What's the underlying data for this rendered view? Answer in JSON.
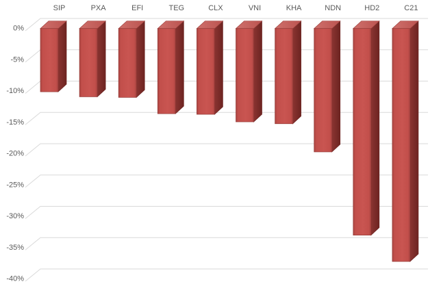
{
  "chart_data": {
    "type": "bar",
    "style": "3d-column-negative",
    "title": "",
    "xlabel": "",
    "ylabel": "",
    "legend": false,
    "grid": true,
    "value_format": "percent",
    "categories": [
      "SIP",
      "PXA",
      "EFI",
      "TEG",
      "CLX",
      "VNI",
      "KHA",
      "NDN",
      "HD2",
      "C21"
    ],
    "values": [
      -10.1,
      -10.9,
      -11.0,
      -13.6,
      -13.7,
      -14.9,
      -15.2,
      -19.7,
      -33.0,
      -37.2
    ],
    "ylim": [
      -40,
      0
    ],
    "y_ticks": [
      {
        "value": 0,
        "label": "0%"
      },
      {
        "value": -5,
        "label": "-5%"
      },
      {
        "value": -10,
        "label": "-10%"
      },
      {
        "value": -15,
        "label": "-15%"
      },
      {
        "value": -20,
        "label": "-20%"
      },
      {
        "value": -25,
        "label": "-25%"
      },
      {
        "value": -30,
        "label": "-30%"
      },
      {
        "value": -35,
        "label": "-35%"
      },
      {
        "value": -40,
        "label": "-40%"
      }
    ],
    "colors": {
      "background": "#ffffff",
      "gridline": "#d9d9d9",
      "label_text": "#595959",
      "bar_front": "#c24f4b",
      "bar_front_dark_edge": "#a84441",
      "bar_top": "#cf706c",
      "bar_top_dark": "#bb5450",
      "bar_side": "#8a3431",
      "bar_side_dark": "#6d2421",
      "bar_outline": "#943a37"
    }
  }
}
